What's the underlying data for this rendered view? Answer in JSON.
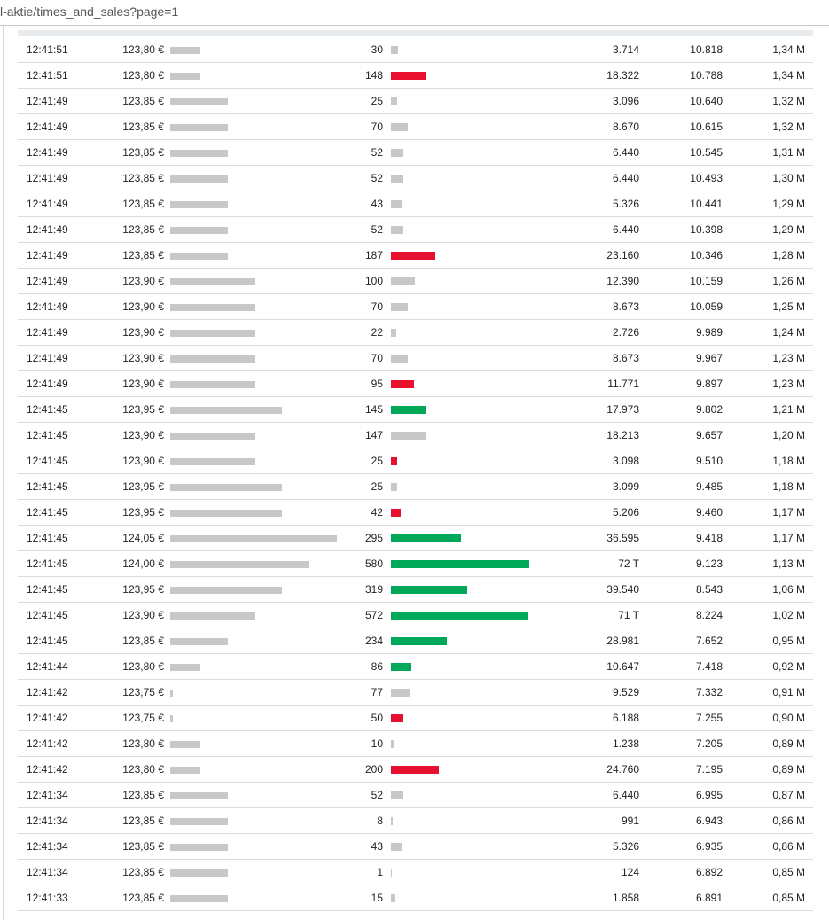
{
  "browser": {
    "url": "l-aktie/times_and_sales?page=1"
  },
  "colors": {
    "neutral": "#c8c8c8",
    "buy": "#00a859",
    "sell": "#e8102f"
  },
  "scales": {
    "price_min": 123.75,
    "price_max": 124.05,
    "volume_max": 580
  },
  "rows": [
    {
      "time": "12:41:51",
      "price": "123,80 €",
      "price_value": 123.8,
      "volume": "30",
      "volume_value": 30,
      "side": "neutral",
      "turnover": "3.714",
      "cum_volume": "10.818",
      "cum_turnover": "1,34 M"
    },
    {
      "time": "12:41:51",
      "price": "123,80 €",
      "price_value": 123.8,
      "volume": "148",
      "volume_value": 148,
      "side": "sell",
      "turnover": "18.322",
      "cum_volume": "10.788",
      "cum_turnover": "1,34 M"
    },
    {
      "time": "12:41:49",
      "price": "123,85 €",
      "price_value": 123.85,
      "volume": "25",
      "volume_value": 25,
      "side": "neutral",
      "turnover": "3.096",
      "cum_volume": "10.640",
      "cum_turnover": "1,32 M"
    },
    {
      "time": "12:41:49",
      "price": "123,85 €",
      "price_value": 123.85,
      "volume": "70",
      "volume_value": 70,
      "side": "neutral",
      "turnover": "8.670",
      "cum_volume": "10.615",
      "cum_turnover": "1,32 M"
    },
    {
      "time": "12:41:49",
      "price": "123,85 €",
      "price_value": 123.85,
      "volume": "52",
      "volume_value": 52,
      "side": "neutral",
      "turnover": "6.440",
      "cum_volume": "10.545",
      "cum_turnover": "1,31 M"
    },
    {
      "time": "12:41:49",
      "price": "123,85 €",
      "price_value": 123.85,
      "volume": "52",
      "volume_value": 52,
      "side": "neutral",
      "turnover": "6.440",
      "cum_volume": "10.493",
      "cum_turnover": "1,30 M"
    },
    {
      "time": "12:41:49",
      "price": "123,85 €",
      "price_value": 123.85,
      "volume": "43",
      "volume_value": 43,
      "side": "neutral",
      "turnover": "5.326",
      "cum_volume": "10.441",
      "cum_turnover": "1,29 M"
    },
    {
      "time": "12:41:49",
      "price": "123,85 €",
      "price_value": 123.85,
      "volume": "52",
      "volume_value": 52,
      "side": "neutral",
      "turnover": "6.440",
      "cum_volume": "10.398",
      "cum_turnover": "1,29 M"
    },
    {
      "time": "12:41:49",
      "price": "123,85 €",
      "price_value": 123.85,
      "volume": "187",
      "volume_value": 187,
      "side": "sell",
      "turnover": "23.160",
      "cum_volume": "10.346",
      "cum_turnover": "1,28 M"
    },
    {
      "time": "12:41:49",
      "price": "123,90 €",
      "price_value": 123.9,
      "volume": "100",
      "volume_value": 100,
      "side": "neutral",
      "turnover": "12.390",
      "cum_volume": "10.159",
      "cum_turnover": "1,26 M"
    },
    {
      "time": "12:41:49",
      "price": "123,90 €",
      "price_value": 123.9,
      "volume": "70",
      "volume_value": 70,
      "side": "neutral",
      "turnover": "8.673",
      "cum_volume": "10.059",
      "cum_turnover": "1,25 M"
    },
    {
      "time": "12:41:49",
      "price": "123,90 €",
      "price_value": 123.9,
      "volume": "22",
      "volume_value": 22,
      "side": "neutral",
      "turnover": "2.726",
      "cum_volume": "9.989",
      "cum_turnover": "1,24 M"
    },
    {
      "time": "12:41:49",
      "price": "123,90 €",
      "price_value": 123.9,
      "volume": "70",
      "volume_value": 70,
      "side": "neutral",
      "turnover": "8.673",
      "cum_volume": "9.967",
      "cum_turnover": "1,23 M"
    },
    {
      "time": "12:41:49",
      "price": "123,90 €",
      "price_value": 123.9,
      "volume": "95",
      "volume_value": 95,
      "side": "sell",
      "turnover": "11.771",
      "cum_volume": "9.897",
      "cum_turnover": "1,23 M"
    },
    {
      "time": "12:41:45",
      "price": "123,95 €",
      "price_value": 123.95,
      "volume": "145",
      "volume_value": 145,
      "side": "buy",
      "turnover": "17.973",
      "cum_volume": "9.802",
      "cum_turnover": "1,21 M"
    },
    {
      "time": "12:41:45",
      "price": "123,90 €",
      "price_value": 123.9,
      "volume": "147",
      "volume_value": 147,
      "side": "neutral",
      "turnover": "18.213",
      "cum_volume": "9.657",
      "cum_turnover": "1,20 M"
    },
    {
      "time": "12:41:45",
      "price": "123,90 €",
      "price_value": 123.9,
      "volume": "25",
      "volume_value": 25,
      "side": "sell",
      "turnover": "3.098",
      "cum_volume": "9.510",
      "cum_turnover": "1,18 M"
    },
    {
      "time": "12:41:45",
      "price": "123,95 €",
      "price_value": 123.95,
      "volume": "25",
      "volume_value": 25,
      "side": "neutral",
      "turnover": "3.099",
      "cum_volume": "9.485",
      "cum_turnover": "1,18 M"
    },
    {
      "time": "12:41:45",
      "price": "123,95 €",
      "price_value": 123.95,
      "volume": "42",
      "volume_value": 42,
      "side": "sell",
      "turnover": "5.206",
      "cum_volume": "9.460",
      "cum_turnover": "1,17 M"
    },
    {
      "time": "12:41:45",
      "price": "124,05 €",
      "price_value": 124.05,
      "volume": "295",
      "volume_value": 295,
      "side": "buy",
      "turnover": "36.595",
      "cum_volume": "9.418",
      "cum_turnover": "1,17 M"
    },
    {
      "time": "12:41:45",
      "price": "124,00 €",
      "price_value": 124.0,
      "volume": "580",
      "volume_value": 580,
      "side": "buy",
      "turnover": "72 T",
      "cum_volume": "9.123",
      "cum_turnover": "1,13 M"
    },
    {
      "time": "12:41:45",
      "price": "123,95 €",
      "price_value": 123.95,
      "volume": "319",
      "volume_value": 319,
      "side": "buy",
      "turnover": "39.540",
      "cum_volume": "8.543",
      "cum_turnover": "1,06 M"
    },
    {
      "time": "12:41:45",
      "price": "123,90 €",
      "price_value": 123.9,
      "volume": "572",
      "volume_value": 572,
      "side": "buy",
      "turnover": "71 T",
      "cum_volume": "8.224",
      "cum_turnover": "1,02 M"
    },
    {
      "time": "12:41:45",
      "price": "123,85 €",
      "price_value": 123.85,
      "volume": "234",
      "volume_value": 234,
      "side": "buy",
      "turnover": "28.981",
      "cum_volume": "7.652",
      "cum_turnover": "0,95 M"
    },
    {
      "time": "12:41:44",
      "price": "123,80 €",
      "price_value": 123.8,
      "volume": "86",
      "volume_value": 86,
      "side": "buy",
      "turnover": "10.647",
      "cum_volume": "7.418",
      "cum_turnover": "0,92 M"
    },
    {
      "time": "12:41:42",
      "price": "123,75 €",
      "price_value": 123.75,
      "volume": "77",
      "volume_value": 77,
      "side": "neutral",
      "turnover": "9.529",
      "cum_volume": "7.332",
      "cum_turnover": "0,91 M"
    },
    {
      "time": "12:41:42",
      "price": "123,75 €",
      "price_value": 123.75,
      "volume": "50",
      "volume_value": 50,
      "side": "sell",
      "turnover": "6.188",
      "cum_volume": "7.255",
      "cum_turnover": "0,90 M"
    },
    {
      "time": "12:41:42",
      "price": "123,80 €",
      "price_value": 123.8,
      "volume": "10",
      "volume_value": 10,
      "side": "neutral",
      "turnover": "1.238",
      "cum_volume": "7.205",
      "cum_turnover": "0,89 M"
    },
    {
      "time": "12:41:42",
      "price": "123,80 €",
      "price_value": 123.8,
      "volume": "200",
      "volume_value": 200,
      "side": "sell",
      "turnover": "24.760",
      "cum_volume": "7.195",
      "cum_turnover": "0,89 M"
    },
    {
      "time": "12:41:34",
      "price": "123,85 €",
      "price_value": 123.85,
      "volume": "52",
      "volume_value": 52,
      "side": "neutral",
      "turnover": "6.440",
      "cum_volume": "6.995",
      "cum_turnover": "0,87 M"
    },
    {
      "time": "12:41:34",
      "price": "123,85 €",
      "price_value": 123.85,
      "volume": "8",
      "volume_value": 8,
      "side": "neutral",
      "turnover": "991",
      "cum_volume": "6.943",
      "cum_turnover": "0,86 M"
    },
    {
      "time": "12:41:34",
      "price": "123,85 €",
      "price_value": 123.85,
      "volume": "43",
      "volume_value": 43,
      "side": "neutral",
      "turnover": "5.326",
      "cum_volume": "6.935",
      "cum_turnover": "0,86 M"
    },
    {
      "time": "12:41:34",
      "price": "123,85 €",
      "price_value": 123.85,
      "volume": "1",
      "volume_value": 1,
      "side": "neutral",
      "turnover": "124",
      "cum_volume": "6.892",
      "cum_turnover": "0,85 M"
    },
    {
      "time": "12:41:33",
      "price": "123,85 €",
      "price_value": 123.85,
      "volume": "15",
      "volume_value": 15,
      "side": "neutral",
      "turnover": "1.858",
      "cum_volume": "6.891",
      "cum_turnover": "0,85 M"
    }
  ]
}
